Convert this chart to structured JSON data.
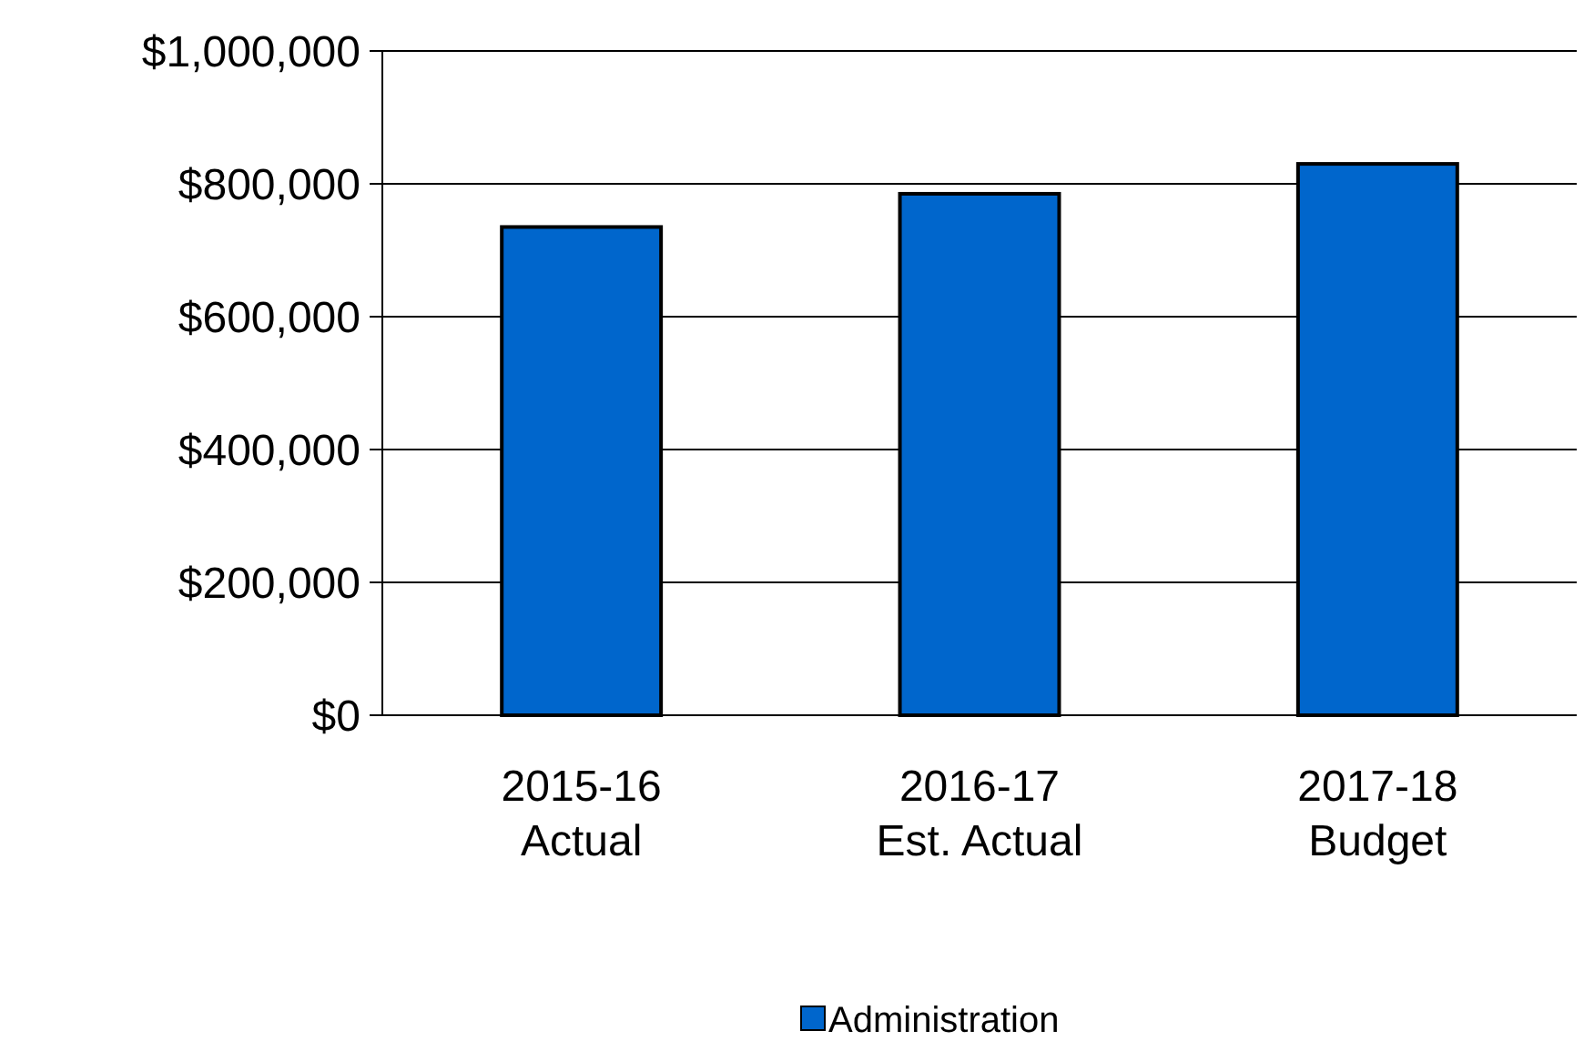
{
  "chart_data": {
    "type": "bar",
    "categories": [
      "2015-16 Actual",
      "2016-17 Est. Actual",
      "2017-18 Budget"
    ],
    "series": [
      {
        "name": "Administration",
        "color": "#0066cc",
        "values": [
          735000,
          785000,
          830000
        ]
      }
    ],
    "ylim": [
      0,
      1000000
    ],
    "yticks": [
      {
        "value": 0,
        "label": "$0"
      },
      {
        "value": 200000,
        "label": "$200,000"
      },
      {
        "value": 400000,
        "label": "$400,000"
      },
      {
        "value": 600000,
        "label": "$600,000"
      },
      {
        "value": 800000,
        "label": "$800,000"
      },
      {
        "value": 1000000,
        "label": "$1,000,000"
      }
    ],
    "grid": "y",
    "legend": "bottom"
  }
}
